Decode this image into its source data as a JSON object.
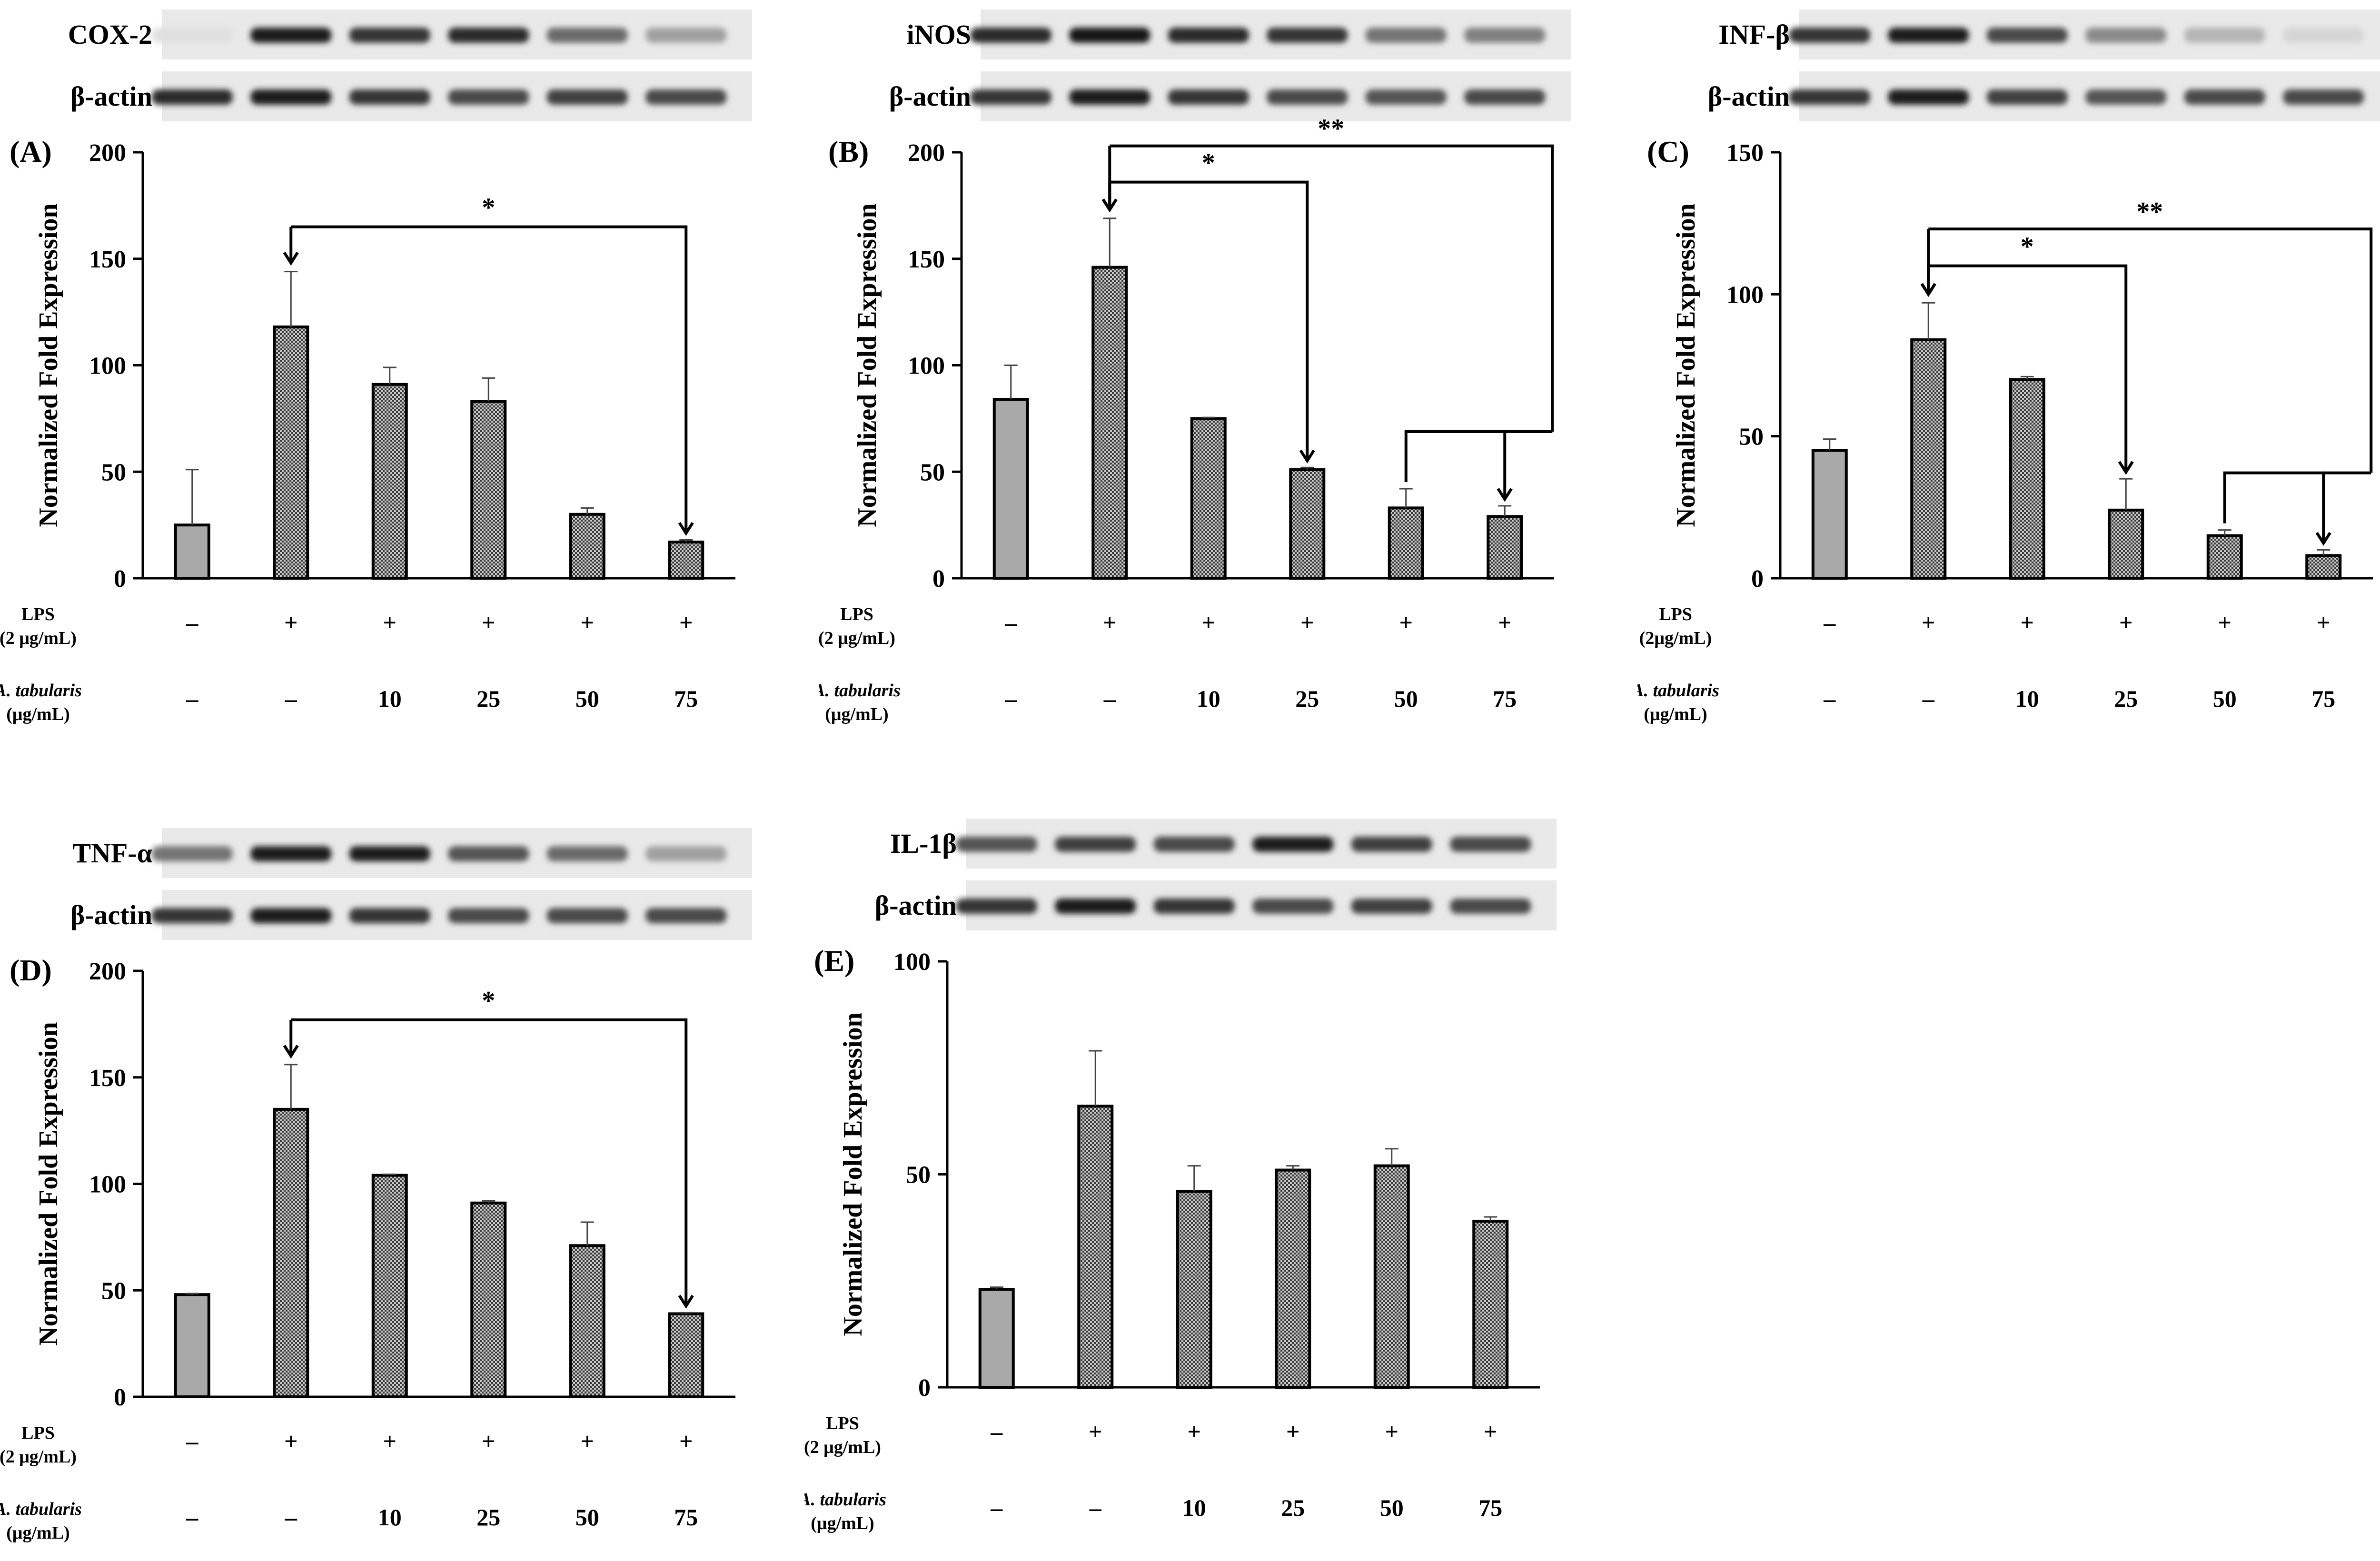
{
  "row_labels": {
    "lps": "LPS",
    "lps_unit": "(2 μg/mL)",
    "lps_unit_tight": "(2μg/mL)",
    "extract": "A. tabularis",
    "extract_unit": "(μg/mL)"
  },
  "lps_signs": [
    "–",
    "+",
    "+",
    "+",
    "+",
    "+"
  ],
  "dose_signs": [
    "–",
    "–",
    "10",
    "25",
    "50",
    "75"
  ],
  "blot_loading_label": "β-actin",
  "chart_data": [
    {
      "id": "A",
      "type": "bar",
      "panel_label": "(A)",
      "target": "COX-2",
      "ylabel": "Normalized Fold Expression",
      "ylim": [
        0,
        200
      ],
      "yticks": [
        0,
        50,
        100,
        150,
        200
      ],
      "values": [
        25,
        118,
        91,
        83,
        30,
        17
      ],
      "errors": [
        26,
        26,
        8,
        11,
        3,
        1
      ],
      "target_bands": [
        0.05,
        0.95,
        0.85,
        0.9,
        0.6,
        0.35
      ],
      "actin_bands": [
        0.9,
        0.95,
        0.85,
        0.75,
        0.8,
        0.75
      ],
      "significance": [
        {
          "from": 1,
          "to": [
            5
          ],
          "label": "*",
          "level": 165
        }
      ]
    },
    {
      "id": "B",
      "type": "bar",
      "panel_label": "(B)",
      "target": "iNOS",
      "ylabel": "Normalized Fold Expression",
      "ylim": [
        0,
        200
      ],
      "yticks": [
        0,
        50,
        100,
        150,
        200
      ],
      "values": [
        84,
        146,
        75,
        51,
        33,
        29
      ],
      "errors": [
        16,
        23,
        0.5,
        1,
        9,
        5
      ],
      "target_bands": [
        0.9,
        0.98,
        0.9,
        0.85,
        0.55,
        0.5
      ],
      "actin_bands": [
        0.85,
        0.95,
        0.85,
        0.75,
        0.7,
        0.75
      ],
      "significance": [
        {
          "from": 1,
          "to": [
            3
          ],
          "label": "*",
          "level": 186
        },
        {
          "from": 1,
          "to": [
            4,
            5
          ],
          "label": "**",
          "level": 203
        }
      ]
    },
    {
      "id": "C",
      "type": "bar",
      "panel_label": "(C)",
      "target": "INF-β",
      "ylabel": "Normalized Fold Expression",
      "ylim": [
        0,
        150
      ],
      "yticks": [
        0,
        50,
        100,
        150
      ],
      "values": [
        45,
        84,
        70,
        24,
        15,
        8
      ],
      "errors": [
        4,
        13,
        1,
        11,
        2,
        2
      ],
      "target_bands": [
        0.85,
        0.95,
        0.75,
        0.45,
        0.25,
        0.1
      ],
      "actin_bands": [
        0.85,
        0.95,
        0.8,
        0.7,
        0.75,
        0.75
      ],
      "significance": [
        {
          "from": 1,
          "to": [
            3
          ],
          "label": "*",
          "level": 110
        },
        {
          "from": 1,
          "to": [
            4,
            5
          ],
          "label": "**",
          "level": 123
        }
      ]
    },
    {
      "id": "D",
      "type": "bar",
      "panel_label": "(D)",
      "target": "TNF-α",
      "ylabel": "Normalized Fold Expression",
      "ylim": [
        0,
        200
      ],
      "yticks": [
        0,
        50,
        100,
        150,
        200
      ],
      "values": [
        48,
        135,
        104,
        91,
        71,
        39
      ],
      "errors": [
        0.5,
        21,
        0.5,
        1,
        11,
        0.5
      ],
      "target_bands": [
        0.55,
        0.95,
        0.95,
        0.7,
        0.6,
        0.35
      ],
      "actin_bands": [
        0.85,
        0.95,
        0.85,
        0.75,
        0.75,
        0.75
      ],
      "significance": [
        {
          "from": 1,
          "to": [
            5
          ],
          "label": "*",
          "level": 177
        }
      ]
    },
    {
      "id": "E",
      "type": "bar",
      "panel_label": "(E)",
      "target": "IL-1β",
      "ylabel": "Normalized Fold Expression",
      "ylim": [
        0,
        100
      ],
      "yticks": [
        0,
        50,
        100
      ],
      "values": [
        23,
        66,
        46,
        51,
        52,
        39
      ],
      "errors": [
        0.5,
        13,
        6,
        1,
        4,
        1
      ],
      "target_bands": [
        0.7,
        0.8,
        0.75,
        0.95,
        0.8,
        0.75
      ],
      "actin_bands": [
        0.85,
        0.95,
        0.85,
        0.75,
        0.8,
        0.75
      ],
      "significance": []
    }
  ]
}
